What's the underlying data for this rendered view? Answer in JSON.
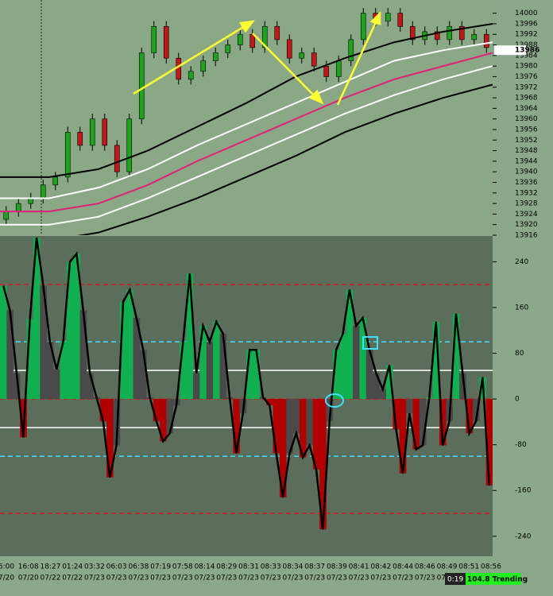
{
  "chart_data": [
    {
      "type": "candlestick",
      "ylim": [
        13916,
        14005
      ],
      "yticks": [
        13916,
        13920,
        13924,
        13928,
        13932,
        13936,
        13940,
        13944,
        13948,
        13952,
        13956,
        13960,
        13964,
        13968,
        13972,
        13976,
        13980,
        13984,
        13988,
        13992,
        13996,
        14000
      ],
      "current_price": 13986,
      "up_color": "#1fa31f",
      "down_color": "#c01818",
      "open": [
        13922,
        13925,
        13928,
        13930,
        13935,
        13938,
        13955,
        13950,
        13960,
        13950,
        13940,
        13960,
        13985,
        13995,
        13983,
        13975,
        13978,
        13982,
        13985,
        13988,
        13992,
        13987,
        13995,
        13990,
        13983,
        13985,
        13980,
        13976,
        13982,
        13990,
        14000,
        13997,
        14000,
        13995,
        13990,
        13993,
        13990,
        13995,
        13990,
        13992
      ],
      "high": [
        13927,
        13930,
        13932,
        13937,
        13940,
        13957,
        13957,
        13962,
        13962,
        13952,
        13962,
        13987,
        13997,
        13997,
        13985,
        13980,
        13984,
        13987,
        13990,
        13994,
        13994,
        13997,
        13997,
        13992,
        13987,
        13987,
        13982,
        13984,
        13992,
        14002,
        14002,
        14002,
        14002,
        13997,
        13995,
        13995,
        13997,
        13997,
        13994,
        13994
      ],
      "low": [
        13920,
        13923,
        13926,
        13928,
        13933,
        13936,
        13948,
        13948,
        13948,
        13938,
        13938,
        13958,
        13983,
        13981,
        13973,
        13973,
        13976,
        13980,
        13983,
        13986,
        13985,
        13985,
        13988,
        13981,
        13981,
        13978,
        13974,
        13974,
        13980,
        13988,
        13995,
        13995,
        13993,
        13988,
        13988,
        13988,
        13988,
        13988,
        13988,
        13985
      ],
      "close": [
        13925,
        13928,
        13930,
        13935,
        13938,
        13955,
        13950,
        13960,
        13950,
        13940,
        13960,
        13985,
        13995,
        13983,
        13975,
        13978,
        13982,
        13985,
        13988,
        13992,
        13987,
        13995,
        13990,
        13983,
        13985,
        13980,
        13976,
        13982,
        13990,
        14000,
        13997,
        14000,
        13995,
        13990,
        13993,
        13990,
        13995,
        13990,
        13992,
        13987
      ],
      "series": [
        {
          "color": "#000000",
          "values": [
            13938,
            13938,
            13941,
            13948,
            13957,
            13966,
            13976,
            13983,
            13989,
            13993,
            13996
          ]
        },
        {
          "color": "#ffffff",
          "values": [
            13930,
            13930,
            13934,
            13941,
            13950,
            13958,
            13966,
            13974,
            13982,
            13986,
            13989
          ]
        },
        {
          "color": "#e0207a",
          "values": [
            13925,
            13925,
            13928,
            13935,
            13944,
            13952,
            13960,
            13968,
            13975,
            13980,
            13985
          ]
        },
        {
          "color": "#ffffff",
          "values": [
            13920,
            13920,
            13923,
            13930,
            13938,
            13946,
            13954,
            13962,
            13969,
            13975,
            13980
          ]
        },
        {
          "color": "#000000",
          "values": [
            13912,
            13914,
            13917,
            13923,
            13930,
            13938,
            13946,
            13955,
            13962,
            13968,
            13973
          ]
        }
      ]
    },
    {
      "type": "bar",
      "ylim": [
        -275,
        285
      ],
      "yticks": [
        240,
        160,
        80,
        0,
        -80,
        -160,
        -240
      ],
      "levels": [
        200,
        100,
        50,
        0,
        -50,
        -100,
        -200
      ],
      "level_colors": [
        "#d02020",
        "#40e0ff",
        "#ffffff",
        "#d02020",
        "#ffffff",
        "#40e0ff",
        "#d02020"
      ],
      "level_dashed": [
        true,
        true,
        false,
        true,
        false,
        true,
        true
      ],
      "colors": {
        "up": "#10b050",
        "down": "#b00000",
        "neutral": "#4a4a4a",
        "line": "#000000"
      },
      "values": [
        198,
        155,
        45,
        -67,
        140,
        282,
        198,
        100,
        52,
        100,
        240,
        254,
        155,
        45,
        3,
        -39,
        -137,
        -81,
        170,
        191,
        142,
        86,
        3,
        -39,
        -74,
        -60,
        -11,
        100,
        219,
        45,
        128,
        100,
        135,
        114,
        3,
        -95,
        -25,
        86,
        86,
        3,
        -11,
        -95,
        -172,
        -95,
        -60,
        -102,
        -81,
        -123,
        -228,
        -39,
        86,
        114,
        191,
        128,
        142,
        86,
        45,
        17,
        59,
        -53,
        -130,
        -25,
        -88,
        -81,
        3,
        135,
        -81,
        -39,
        149,
        45,
        -60,
        -39,
        38,
        -151
      ]
    }
  ],
  "x_axis": {
    "times": [
      "6:00",
      "16:08",
      "18:27",
      "01:24",
      "03:32",
      "06:03",
      "06:38",
      "07:19",
      "07:58",
      "08:14",
      "08:29",
      "08:31",
      "08:33",
      "08:34",
      "08:37",
      "08:39",
      "08:41",
      "08:42",
      "08:44",
      "08:46",
      "08:49",
      "08:51",
      "08:56"
    ],
    "dates": [
      "7/20",
      "07/20",
      "07/22",
      "07/22",
      "07/23",
      "07/23",
      "07/23",
      "07/23",
      "07/23",
      "07/23",
      "07/23",
      "07/23",
      "07/23",
      "07/23",
      "07/23",
      "07/23",
      "07/23",
      "07/23",
      "07/23",
      "07/23",
      "07/23",
      "07/23",
      "07/23"
    ]
  },
  "status": {
    "timer": "0:19",
    "state": "104.8 Trending"
  }
}
